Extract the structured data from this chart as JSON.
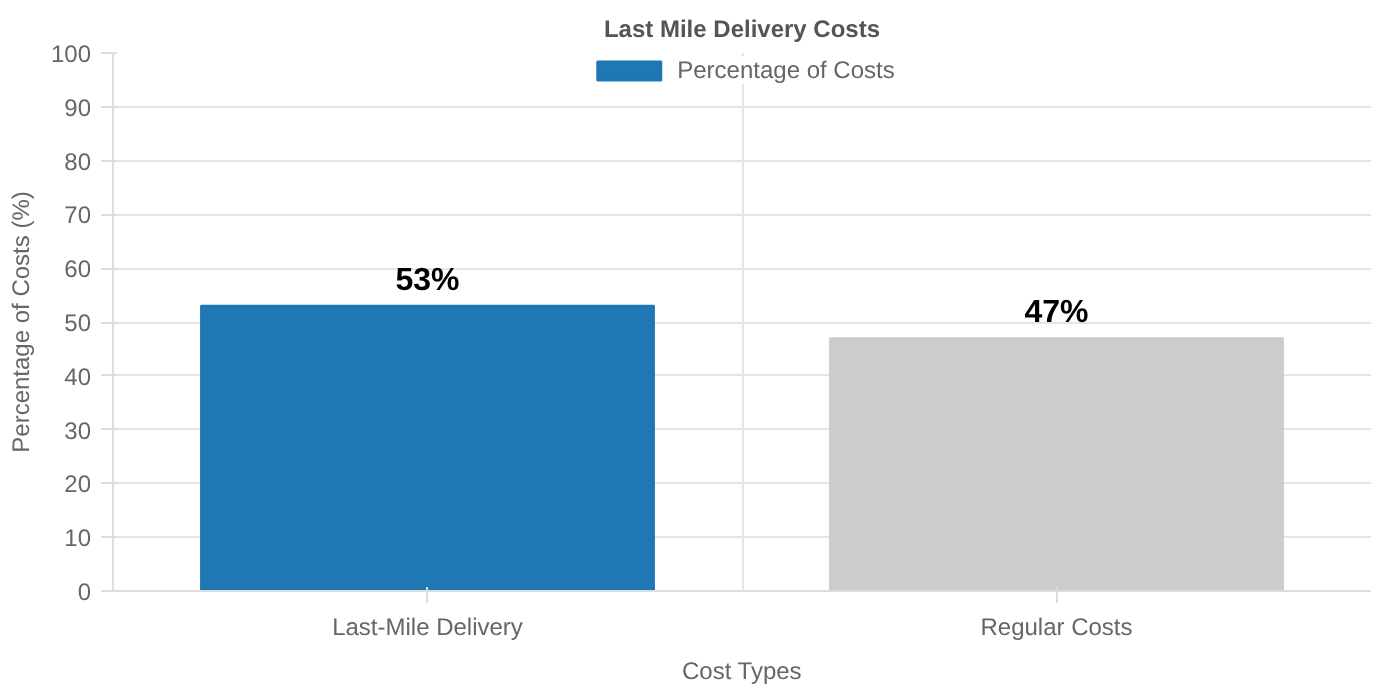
{
  "chart_data": {
    "type": "bar",
    "title": "Last Mile Delivery Costs",
    "xlabel": "Cost Types",
    "ylabel": "Percentage of Costs (%)",
    "categories": [
      "Last-Mile Delivery",
      "Regular Costs"
    ],
    "series": [
      {
        "name": "Percentage of Costs",
        "color": "#1f77b4",
        "colors": [
          "#1f77b4",
          "#cccccc"
        ],
        "values": [
          53,
          47
        ],
        "value_labels": [
          "53%",
          "47%"
        ]
      }
    ],
    "ylim": [
      0,
      100
    ],
    "yticks": [
      0,
      10,
      20,
      30,
      40,
      50,
      60,
      70,
      80,
      90,
      100
    ],
    "grid": true,
    "legend": "top"
  }
}
